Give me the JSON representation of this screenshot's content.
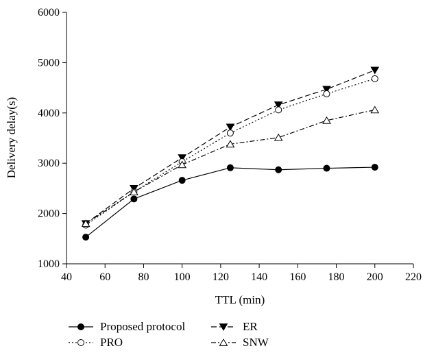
{
  "chart_data": {
    "type": "line",
    "title": "",
    "xlabel": "TTL (min)",
    "ylabel": "Delivery delay(s)",
    "xlim": [
      40,
      220
    ],
    "ylim": [
      1000,
      6000
    ],
    "xticks": [
      40,
      60,
      80,
      100,
      120,
      140,
      160,
      180,
      200,
      220
    ],
    "yticks": [
      1000,
      2000,
      3000,
      4000,
      5000,
      6000
    ],
    "grid": false,
    "legend_placement": "bottom",
    "x": [
      50,
      75,
      100,
      125,
      150,
      175,
      200
    ],
    "series": [
      {
        "name": "Proposed protocol",
        "values": [
          1530,
          2290,
          2660,
          2910,
          2870,
          2900,
          2920
        ],
        "marker": "filled-circle",
        "line_style": "solid",
        "color": "#000000"
      },
      {
        "name": "ER",
        "values": [
          1800,
          2500,
          3110,
          3720,
          4160,
          4470,
          4850
        ],
        "marker": "filled-triangle-down",
        "line_style": "dashed",
        "color": "#000000"
      },
      {
        "name": "PRO",
        "values": [
          1770,
          2430,
          3030,
          3600,
          4060,
          4380,
          4680
        ],
        "marker": "open-circle",
        "line_style": "dotted",
        "color": "#000000"
      },
      {
        "name": "SNW",
        "values": [
          1800,
          2430,
          2970,
          3380,
          3510,
          3850,
          4060
        ],
        "marker": "open-triangle-up",
        "line_style": "dash-dot",
        "color": "#000000"
      }
    ]
  }
}
